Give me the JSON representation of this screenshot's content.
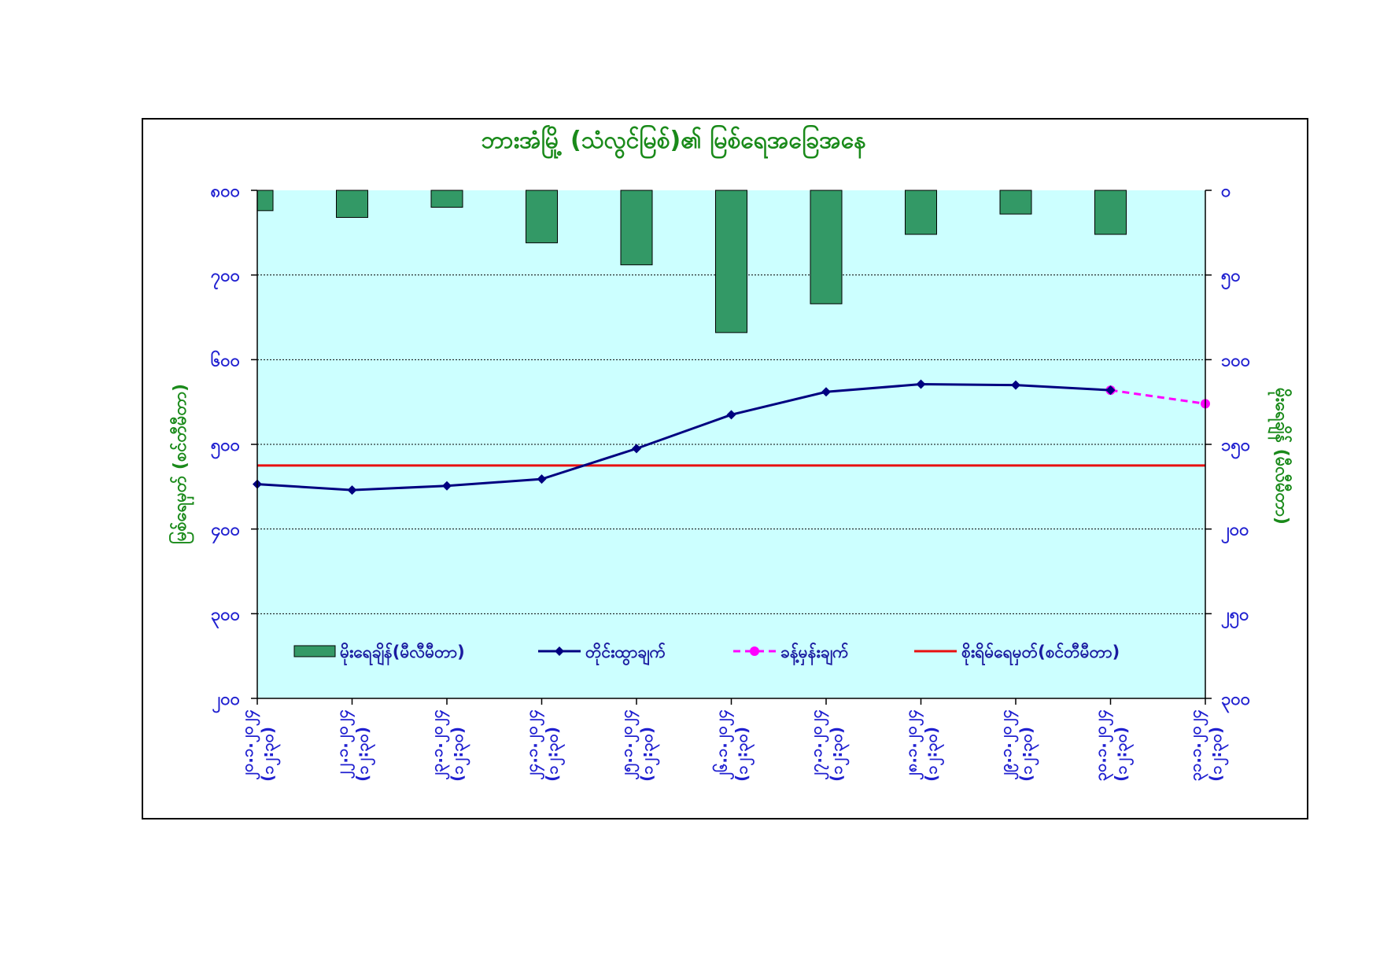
{
  "chart_data": {
    "type": "bar+line",
    "title": "ဘားအံမြို့ (သံလွင်မြစ်)၏ မြစ်ရေအခြေအနေ",
    "ylabel_left": "မြစ်ရေမှတ် (စင်တီမီတာ)",
    "ylabel_right": "မိုးရေချိန် (မီလီမီတာ)",
    "categories": [
      [
        "၂၀.၁.၂၀၂၄",
        "(၁၂:၃၀)"
      ],
      [
        "၂၂.၁.၂၀၂၄",
        "(၁၂:၃၀)"
      ],
      [
        "၂၃.၁.၂၀၂၄",
        "(၁၂:၃၀)"
      ],
      [
        "၂၄.၁.၂၀၂၄",
        "(၁၂:၃၀)"
      ],
      [
        "၂၅.၁.၂၀၂၄",
        "(၁၂:၃၀)"
      ],
      [
        "၂၆.၁.၂၀၂၄",
        "(၁၂:၃၀)"
      ],
      [
        "၂၇.၁.၂၀၂၄",
        "(၁၂:၃၀)"
      ],
      [
        "၂၈.၁.၂၀၂၄",
        "(၁၂:၃၀)"
      ],
      [
        "၂၉.၁.၂၀၂၄",
        "(၁၂:၃၀)"
      ],
      [
        "၃၀.၁.၂၀၂၄",
        "(၁၂:၃၀)"
      ],
      [
        "၃၁.၁.၂၀၂၄",
        "(၁၂:၃၀)"
      ]
    ],
    "left_axis": {
      "min": 200,
      "max": 800,
      "ticks": [
        200,
        300,
        400,
        500,
        600,
        700,
        800
      ],
      "tick_labels": [
        "၂၀၀",
        "၃၀၀",
        "၄၀၀",
        "၅၀၀",
        "၆၀၀",
        "၇၀၀",
        "၈၀၀"
      ]
    },
    "right_axis": {
      "min": 0,
      "max": 300,
      "inverted": true,
      "ticks": [
        0,
        50,
        100,
        150,
        200,
        250,
        300
      ],
      "tick_labels": [
        "၀",
        "၅၀",
        "၁၀၀",
        "၁၅၀",
        "၂၀၀",
        "၂၅၀",
        "၃၀၀"
      ]
    },
    "series": [
      {
        "name": "မိုးရေချိန်(မီလီမီတာ)",
        "type": "bar",
        "axis": "right",
        "color": "#339966",
        "values": [
          12,
          16,
          10,
          31,
          44,
          84,
          67,
          26,
          14,
          26,
          null
        ]
      },
      {
        "name": "တိုင်းထွာချက်",
        "type": "line",
        "axis": "left",
        "color": "#000080",
        "values": [
          453,
          446,
          451,
          459,
          495,
          535,
          562,
          571,
          570,
          564,
          null
        ]
      },
      {
        "name": "ခန့်မှန်းချက်",
        "type": "line-dashed",
        "axis": "left",
        "color": "#ff00ff",
        "values": [
          null,
          null,
          null,
          null,
          null,
          null,
          null,
          null,
          null,
          564,
          548
        ]
      },
      {
        "name": "စိုးရိမ်ရေမှတ်(စင်တီမီတာ)",
        "type": "hline",
        "axis": "left",
        "color": "#e81010",
        "value": 475
      }
    ],
    "grid": true,
    "plot_background": "#ccffff",
    "legend_position": "bottom-inside"
  }
}
